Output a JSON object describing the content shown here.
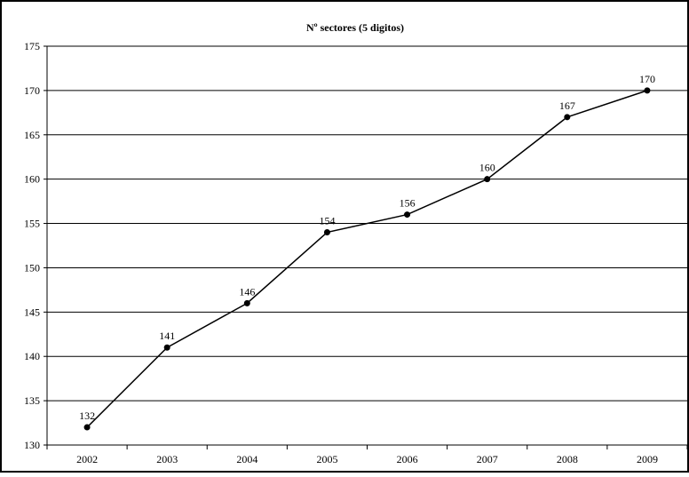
{
  "chart_data": {
    "type": "line",
    "title": "Nº sectores (5 digitos)",
    "xlabel": "",
    "ylabel": "",
    "categories": [
      "2002",
      "2003",
      "2004",
      "2005",
      "2006",
      "2007",
      "2008",
      "2009"
    ],
    "series": [
      {
        "values": [
          132,
          141,
          146,
          154,
          156,
          160,
          167,
          170
        ]
      }
    ],
    "ylim": [
      130,
      175
    ],
    "yticks": [
      130,
      135,
      140,
      145,
      150,
      155,
      160,
      165,
      170,
      175
    ],
    "grid": true,
    "legend": "none",
    "data_labels": true,
    "colors": {
      "line": "#000000",
      "marker": "#000000",
      "grid": "#000000",
      "frame": "#000000"
    }
  }
}
